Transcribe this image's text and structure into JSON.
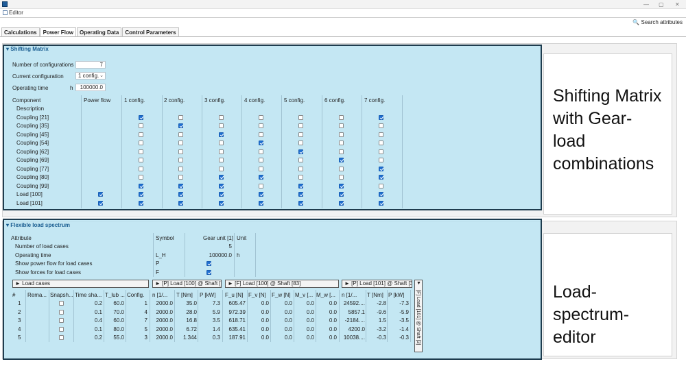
{
  "window": {
    "editor_tab": "Editor",
    "ctl_min": "—",
    "ctl_max": "▢",
    "ctl_close": "✕"
  },
  "tabs": [
    "Calculations",
    "Power Flow",
    "Operating Data",
    "Control Parameters"
  ],
  "search_label": "Search attributes",
  "shifting": {
    "title": "Shifting Matrix",
    "num_configs_label": "Number of configurations",
    "num_configs_value": "7",
    "current_config_label": "Current configuration",
    "current_config_value": "1 config.",
    "operating_time_label": "Operating time",
    "operating_time_unit": "h",
    "operating_time_value": "100000.0",
    "headers": [
      "Component",
      "Power flow",
      "1 config.",
      "2 config.",
      "3 config.",
      "4 config.",
      "5 config.",
      "6 config.",
      "7 config."
    ],
    "description_label": "Description",
    "rows": [
      {
        "name": "Coupling [21]",
        "pf": null,
        "c": [
          1,
          0,
          0,
          0,
          0,
          0,
          1
        ]
      },
      {
        "name": "Coupling [35]",
        "pf": null,
        "c": [
          0,
          1,
          0,
          0,
          0,
          0,
          0
        ]
      },
      {
        "name": "Coupling [45]",
        "pf": null,
        "c": [
          0,
          0,
          1,
          0,
          0,
          0,
          0
        ]
      },
      {
        "name": "Coupling [54]",
        "pf": null,
        "c": [
          0,
          0,
          0,
          1,
          0,
          0,
          0
        ]
      },
      {
        "name": "Coupling [62]",
        "pf": null,
        "c": [
          0,
          0,
          0,
          0,
          1,
          0,
          0
        ]
      },
      {
        "name": "Coupling [69]",
        "pf": null,
        "c": [
          0,
          0,
          0,
          0,
          0,
          1,
          0
        ]
      },
      {
        "name": "Coupling [77]",
        "pf": null,
        "c": [
          0,
          0,
          0,
          0,
          0,
          0,
          1
        ]
      },
      {
        "name": "Coupling [80]",
        "pf": null,
        "c": [
          0,
          0,
          1,
          1,
          0,
          0,
          1
        ]
      },
      {
        "name": "Coupling [99]",
        "pf": null,
        "c": [
          1,
          1,
          1,
          0,
          1,
          1,
          0
        ]
      },
      {
        "name": "Load [100]",
        "pf": 1,
        "c": [
          1,
          1,
          1,
          1,
          1,
          1,
          1
        ]
      },
      {
        "name": "Load [101]",
        "pf": 1,
        "c": [
          1,
          1,
          1,
          1,
          1,
          1,
          1
        ]
      }
    ]
  },
  "spectrum": {
    "title": "Flexible load spectrum",
    "attr_headers": [
      "Attribute",
      "Symbol",
      "Gear unit [1]",
      "Unit"
    ],
    "attr_rows": [
      {
        "name": "Number of load cases",
        "symbol": "",
        "value": "5",
        "unit": "",
        "check": null
      },
      {
        "name": "Operating time",
        "symbol": "L_H",
        "value": "100000.0",
        "unit": "h",
        "check": null
      },
      {
        "name": "Show power flow for load cases",
        "symbol": "P",
        "value": "",
        "unit": "",
        "check": 1
      },
      {
        "name": "Show forces for load cases",
        "symbol": "F",
        "value": "",
        "unit": "",
        "check": 1
      }
    ],
    "bars": [
      "► Load cases",
      "► [P] Load [100] @ Shaft [...",
      "► [F] Load [100] @ Shaft [83]",
      "► [P] Load [101] @ Shaft [3]"
    ],
    "vbar_arrow": "▼",
    "vbar_label": "[F] Load [101] @ Shaft [3]",
    "table_headers": [
      "#",
      "Rema...",
      "Snapsh...",
      "Time sha...",
      "T_lub ...",
      "Config.",
      "n [1/...",
      "T [Nm]",
      "P [kW]",
      "F_u [N]",
      "F_v [N]",
      "F_w [N]",
      "M_v [...",
      "M_w [...",
      "n [1/...",
      "T [Nm]",
      "P [kW]"
    ],
    "table_rows": [
      [
        "1",
        "",
        "",
        "0.2",
        "60.0",
        "1",
        "2000.0",
        "35.0",
        "7.3",
        "605.47",
        "0.0",
        "0.0",
        "0.0",
        "0.0",
        "24592....",
        "-2.8",
        "-7.3"
      ],
      [
        "2",
        "",
        "",
        "0.1",
        "70.0",
        "4",
        "2000.0",
        "28.0",
        "5.9",
        "972.39",
        "0.0",
        "0.0",
        "0.0",
        "0.0",
        "5857.1",
        "-9.6",
        "-5.9"
      ],
      [
        "3",
        "",
        "",
        "0.4",
        "60.0",
        "7",
        "2000.0",
        "16.8",
        "3.5",
        "618.71",
        "0.0",
        "0.0",
        "0.0",
        "0.0",
        "-2184....",
        "1.5",
        "-3.5"
      ],
      [
        "4",
        "",
        "",
        "0.1",
        "80.0",
        "5",
        "2000.0",
        "6.72",
        "1.4",
        "635.41",
        "0.0",
        "0.0",
        "0.0",
        "0.0",
        "4200.0",
        "-3.2",
        "-1.4"
      ],
      [
        "5",
        "",
        "",
        "0.2",
        "55.0",
        "3",
        "2000.0",
        "1.344",
        "0.3",
        "187.91",
        "0.0",
        "0.0",
        "0.0",
        "0.0",
        "10038....",
        "-0.3",
        "-0.3"
      ]
    ]
  },
  "captions": {
    "shifting": [
      "Shifting Matrix",
      "with Gear-",
      "load",
      "combinations"
    ],
    "spectrum": [
      "Load-",
      "spectrum-",
      "editor"
    ]
  }
}
